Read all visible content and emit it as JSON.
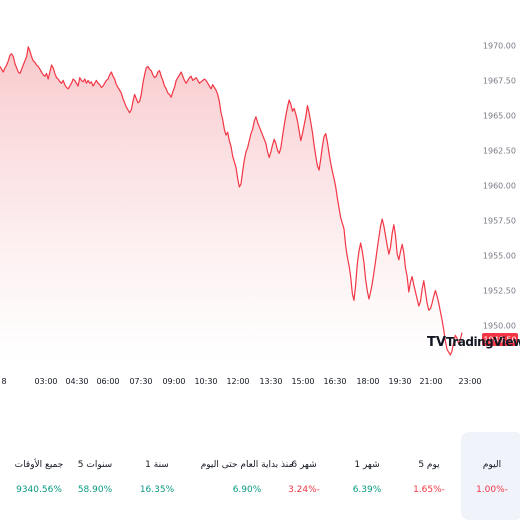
{
  "chart_data": {
    "type": "area",
    "x_ticks": [
      "8",
      "03:00",
      "04:30",
      "06:00",
      "07:30",
      "09:00",
      "10:30",
      "12:00",
      "13:30",
      "15:00",
      "16:30",
      "18:00",
      "19:30",
      "21:00",
      "23:00"
    ],
    "y_ticks": [
      "1970.00",
      "1967.50",
      "1965.00",
      "1962.50",
      "1960.00",
      "1957.50",
      "1955.00",
      "1952.50",
      "1950.00"
    ],
    "ylim": [
      1947.4,
      1971.1
    ],
    "last_value": "1949.50",
    "series": [
      {
        "values": [
          1968.5,
          1968.3,
          1968.1,
          1968.4,
          1968.6,
          1968.9,
          1969.3,
          1969.4,
          1969.2,
          1968.7,
          1968.4,
          1968.1,
          1968.0,
          1968.3,
          1968.6,
          1968.9,
          1969.2,
          1969.9,
          1969.6,
          1969.2,
          1968.9,
          1968.8,
          1968.6,
          1968.5,
          1968.3,
          1968.1,
          1967.9,
          1967.8,
          1968.0,
          1967.6,
          1968.1,
          1968.6,
          1968.4,
          1968.0,
          1967.7,
          1967.6,
          1967.4,
          1967.3,
          1967.5,
          1967.2,
          1967.0,
          1966.9,
          1967.1,
          1967.3,
          1967.6,
          1967.5,
          1967.3,
          1967.1,
          1967.7,
          1967.5,
          1967.4,
          1967.6,
          1967.3,
          1967.5,
          1967.3,
          1967.4,
          1967.1,
          1967.3,
          1967.5,
          1967.3,
          1967.2,
          1967.0,
          1967.1,
          1967.3,
          1967.5,
          1967.6,
          1967.9,
          1968.1,
          1967.8,
          1967.6,
          1967.2,
          1967.0,
          1966.8,
          1966.6,
          1966.2,
          1965.9,
          1965.6,
          1965.4,
          1965.2,
          1965.4,
          1966.0,
          1966.5,
          1966.2,
          1965.9,
          1966.0,
          1966.5,
          1967.3,
          1967.9,
          1968.4,
          1968.5,
          1968.3,
          1968.2,
          1967.9,
          1967.7,
          1967.8,
          1968.1,
          1968.2,
          1967.8,
          1967.5,
          1967.1,
          1966.9,
          1966.6,
          1966.5,
          1966.3,
          1966.7,
          1967.0,
          1967.5,
          1967.7,
          1967.9,
          1968.1,
          1967.8,
          1967.5,
          1967.3,
          1967.5,
          1967.7,
          1967.8,
          1967.5,
          1967.6,
          1967.7,
          1967.5,
          1967.3,
          1967.4,
          1967.5,
          1967.6,
          1967.5,
          1967.3,
          1967.1,
          1966.9,
          1967.2,
          1967.0,
          1966.8,
          1966.5,
          1966.0,
          1965.2,
          1964.7,
          1964.0,
          1963.6,
          1963.8,
          1963.2,
          1962.8,
          1962.1,
          1961.7,
          1961.3,
          1960.5,
          1959.9,
          1960.1,
          1961.0,
          1961.8,
          1962.4,
          1962.7,
          1963.2,
          1963.7,
          1964.0,
          1964.6,
          1964.9,
          1964.5,
          1964.2,
          1963.9,
          1963.6,
          1963.3,
          1963.0,
          1962.4,
          1962.0,
          1962.4,
          1962.9,
          1963.3,
          1963.0,
          1962.5,
          1962.3,
          1962.7,
          1963.5,
          1964.3,
          1965.0,
          1965.6,
          1966.1,
          1965.8,
          1965.3,
          1965.5,
          1965.1,
          1964.6,
          1963.9,
          1963.2,
          1963.7,
          1964.3,
          1964.9,
          1965.7,
          1965.2,
          1964.5,
          1963.8,
          1962.9,
          1962.1,
          1961.4,
          1961.1,
          1961.9,
          1962.8,
          1963.5,
          1963.7,
          1963.1,
          1962.3,
          1961.6,
          1961.0,
          1960.5,
          1959.9,
          1959.1,
          1958.4,
          1957.7,
          1957.3,
          1956.9,
          1955.7,
          1954.9,
          1954.3,
          1953.5,
          1952.3,
          1951.8,
          1952.9,
          1954.4,
          1955.3,
          1955.9,
          1955.3,
          1954.5,
          1953.3,
          1952.5,
          1951.9,
          1952.4,
          1953.0,
          1953.8,
          1954.6,
          1955.5,
          1956.3,
          1957.1,
          1957.6,
          1957.1,
          1956.4,
          1955.7,
          1955.1,
          1955.6,
          1956.6,
          1957.2,
          1956.4,
          1955.1,
          1954.7,
          1955.3,
          1955.8,
          1955.2,
          1954.1,
          1953.5,
          1952.4,
          1953.1,
          1953.5,
          1952.9,
          1952.4,
          1951.9,
          1951.4,
          1951.7,
          1952.6,
          1953.2,
          1952.4,
          1951.6,
          1951.1,
          1951.2,
          1951.6,
          1952.1,
          1952.5,
          1952.1,
          1951.6,
          1951.0,
          1950.4,
          1949.7,
          1948.9,
          1948.3,
          1948.1,
          1947.9,
          1948.2,
          1948.8,
          1949.3,
          1949.1,
          1948.7,
          1949.0,
          1949.5
        ]
      }
    ],
    "colors": {
      "line": "#f23645",
      "fill_top": "#f8c6c9",
      "fill_bottom": "#ffffff",
      "label_bg": "#f23645"
    },
    "grid": false,
    "watermark": "TradingView"
  },
  "stats": [
    {
      "label": "اليوم",
      "value": "1.00%-",
      "color": "#f23645",
      "selected": true
    },
    {
      "label": "5 يوم",
      "value": "1.65%-",
      "color": "#f23645",
      "selected": false
    },
    {
      "label": "1 شهر",
      "value": "6.39%",
      "color": "#089981",
      "selected": false
    },
    {
      "label": "6 شهر",
      "value": "3.24%-",
      "color": "#f23645",
      "selected": false
    },
    {
      "label": "منذ بداية العام حتى اليوم",
      "value": "6.90%",
      "color": "#089981",
      "selected": false
    },
    {
      "label": "1 سنة",
      "value": "16.35%",
      "color": "#089981",
      "selected": false
    },
    {
      "label": "5 سنوات",
      "value": "58.90%",
      "color": "#089981",
      "selected": false
    },
    {
      "label": "جميع الأوقات",
      "value": "9340.56%",
      "color": "#089981",
      "selected": false
    }
  ]
}
